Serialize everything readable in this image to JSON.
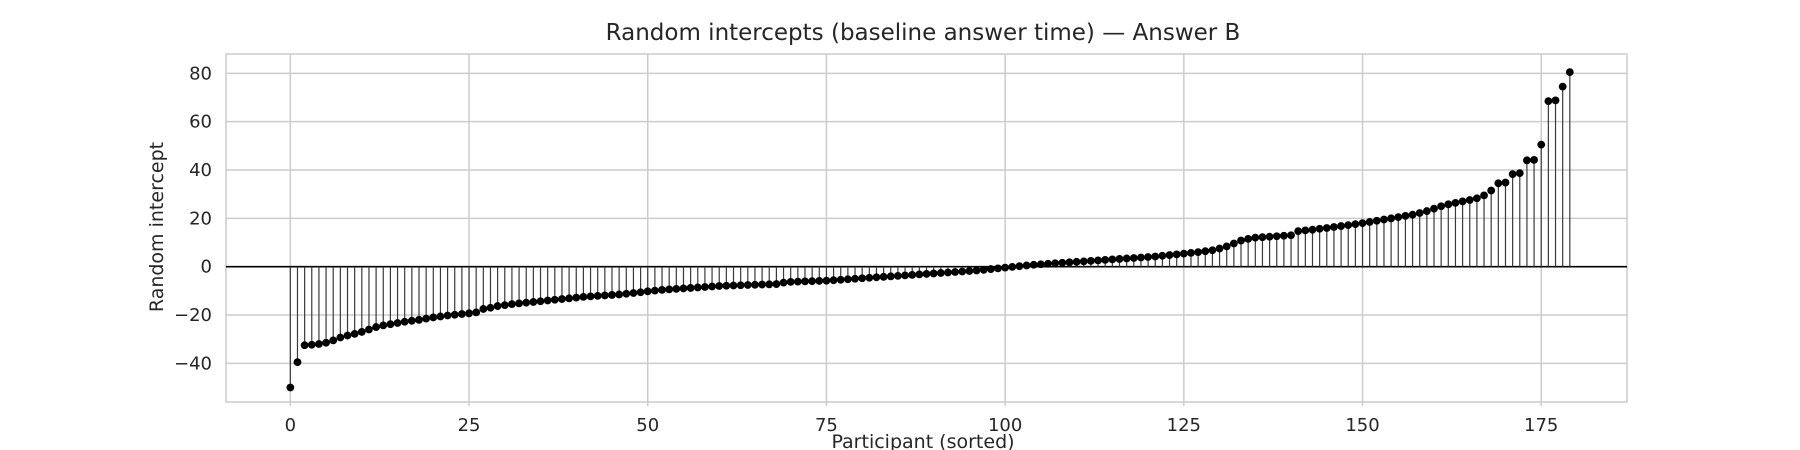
{
  "chart_data": {
    "type": "stem",
    "title": "Random intercepts (baseline answer time) — Answer B",
    "xlabel": "Participant (sorted)",
    "ylabel": "Random intercept",
    "xlim": [
      -9,
      187
    ],
    "ylim": [
      -56,
      88
    ],
    "x_ticks": [
      0,
      25,
      50,
      75,
      100,
      125,
      150,
      175
    ],
    "y_ticks": [
      -40,
      -20,
      0,
      20,
      40,
      60,
      80
    ],
    "baseline": 0,
    "grid": true,
    "marker_color": "#000000",
    "stem_color": "#3a3a3a",
    "grid_color": "#cccccc",
    "values": [
      -50,
      -39.5,
      -32.5,
      -32.3,
      -32,
      -31.5,
      -30.5,
      -29.3,
      -28.5,
      -27.8,
      -27,
      -26,
      -25,
      -24.3,
      -23.8,
      -23.3,
      -22.8,
      -22.4,
      -22,
      -21.5,
      -21,
      -20.6,
      -20.2,
      -19.9,
      -19.6,
      -19.3,
      -18.9,
      -17.5,
      -17,
      -16.3,
      -15.9,
      -15.5,
      -15.2,
      -14.9,
      -14.6,
      -14.3,
      -14,
      -13.7,
      -13.4,
      -13.1,
      -12.8,
      -12.5,
      -12.3,
      -12.1,
      -11.9,
      -11.7,
      -11.5,
      -11.2,
      -10.9,
      -10.6,
      -10.2,
      -9.9,
      -9.6,
      -9.4,
      -9.2,
      -9,
      -8.8,
      -8.6,
      -8.4,
      -8.2,
      -8,
      -7.9,
      -7.8,
      -7.7,
      -7.6,
      -7.5,
      -7.4,
      -7.3,
      -7.2,
      -6.6,
      -6.3,
      -6.2,
      -6.1,
      -6,
      -5.9,
      -5.8,
      -5.6,
      -5.4,
      -5.2,
      -5,
      -4.8,
      -4.6,
      -4.4,
      -4.2,
      -4,
      -3.8,
      -3.6,
      -3.4,
      -3.2,
      -3,
      -2.8,
      -2.6,
      -2.4,
      -2.2,
      -2,
      -1.8,
      -1.6,
      -1.3,
      -1,
      -0.7,
      -0.4,
      -0.1,
      0.2,
      0.5,
      0.8,
      1,
      1.2,
      1.4,
      1.6,
      1.8,
      2,
      2.2,
      2.4,
      2.6,
      2.8,
      3,
      3.2,
      3.4,
      3.6,
      3.8,
      4,
      4.2,
      4.5,
      4.8,
      5.1,
      5.4,
      5.7,
      6,
      6.4,
      6.8,
      7.5,
      8.4,
      9.6,
      10.8,
      11.5,
      12,
      12.2,
      12.4,
      12.6,
      12.8,
      13,
      14.7,
      15,
      15.3,
      15.7,
      16,
      16.4,
      16.8,
      17.2,
      17.6,
      18,
      18.5,
      19,
      19.5,
      20,
      20.5,
      21,
      21.5,
      22.2,
      23,
      24,
      25,
      25.8,
      26.4,
      27,
      27.6,
      28.3,
      29.5,
      31.5,
      34.5,
      34.8,
      38.3,
      38.7,
      44,
      44.2,
      50.5,
      68.5,
      68.8,
      74.5,
      80.5
    ]
  }
}
